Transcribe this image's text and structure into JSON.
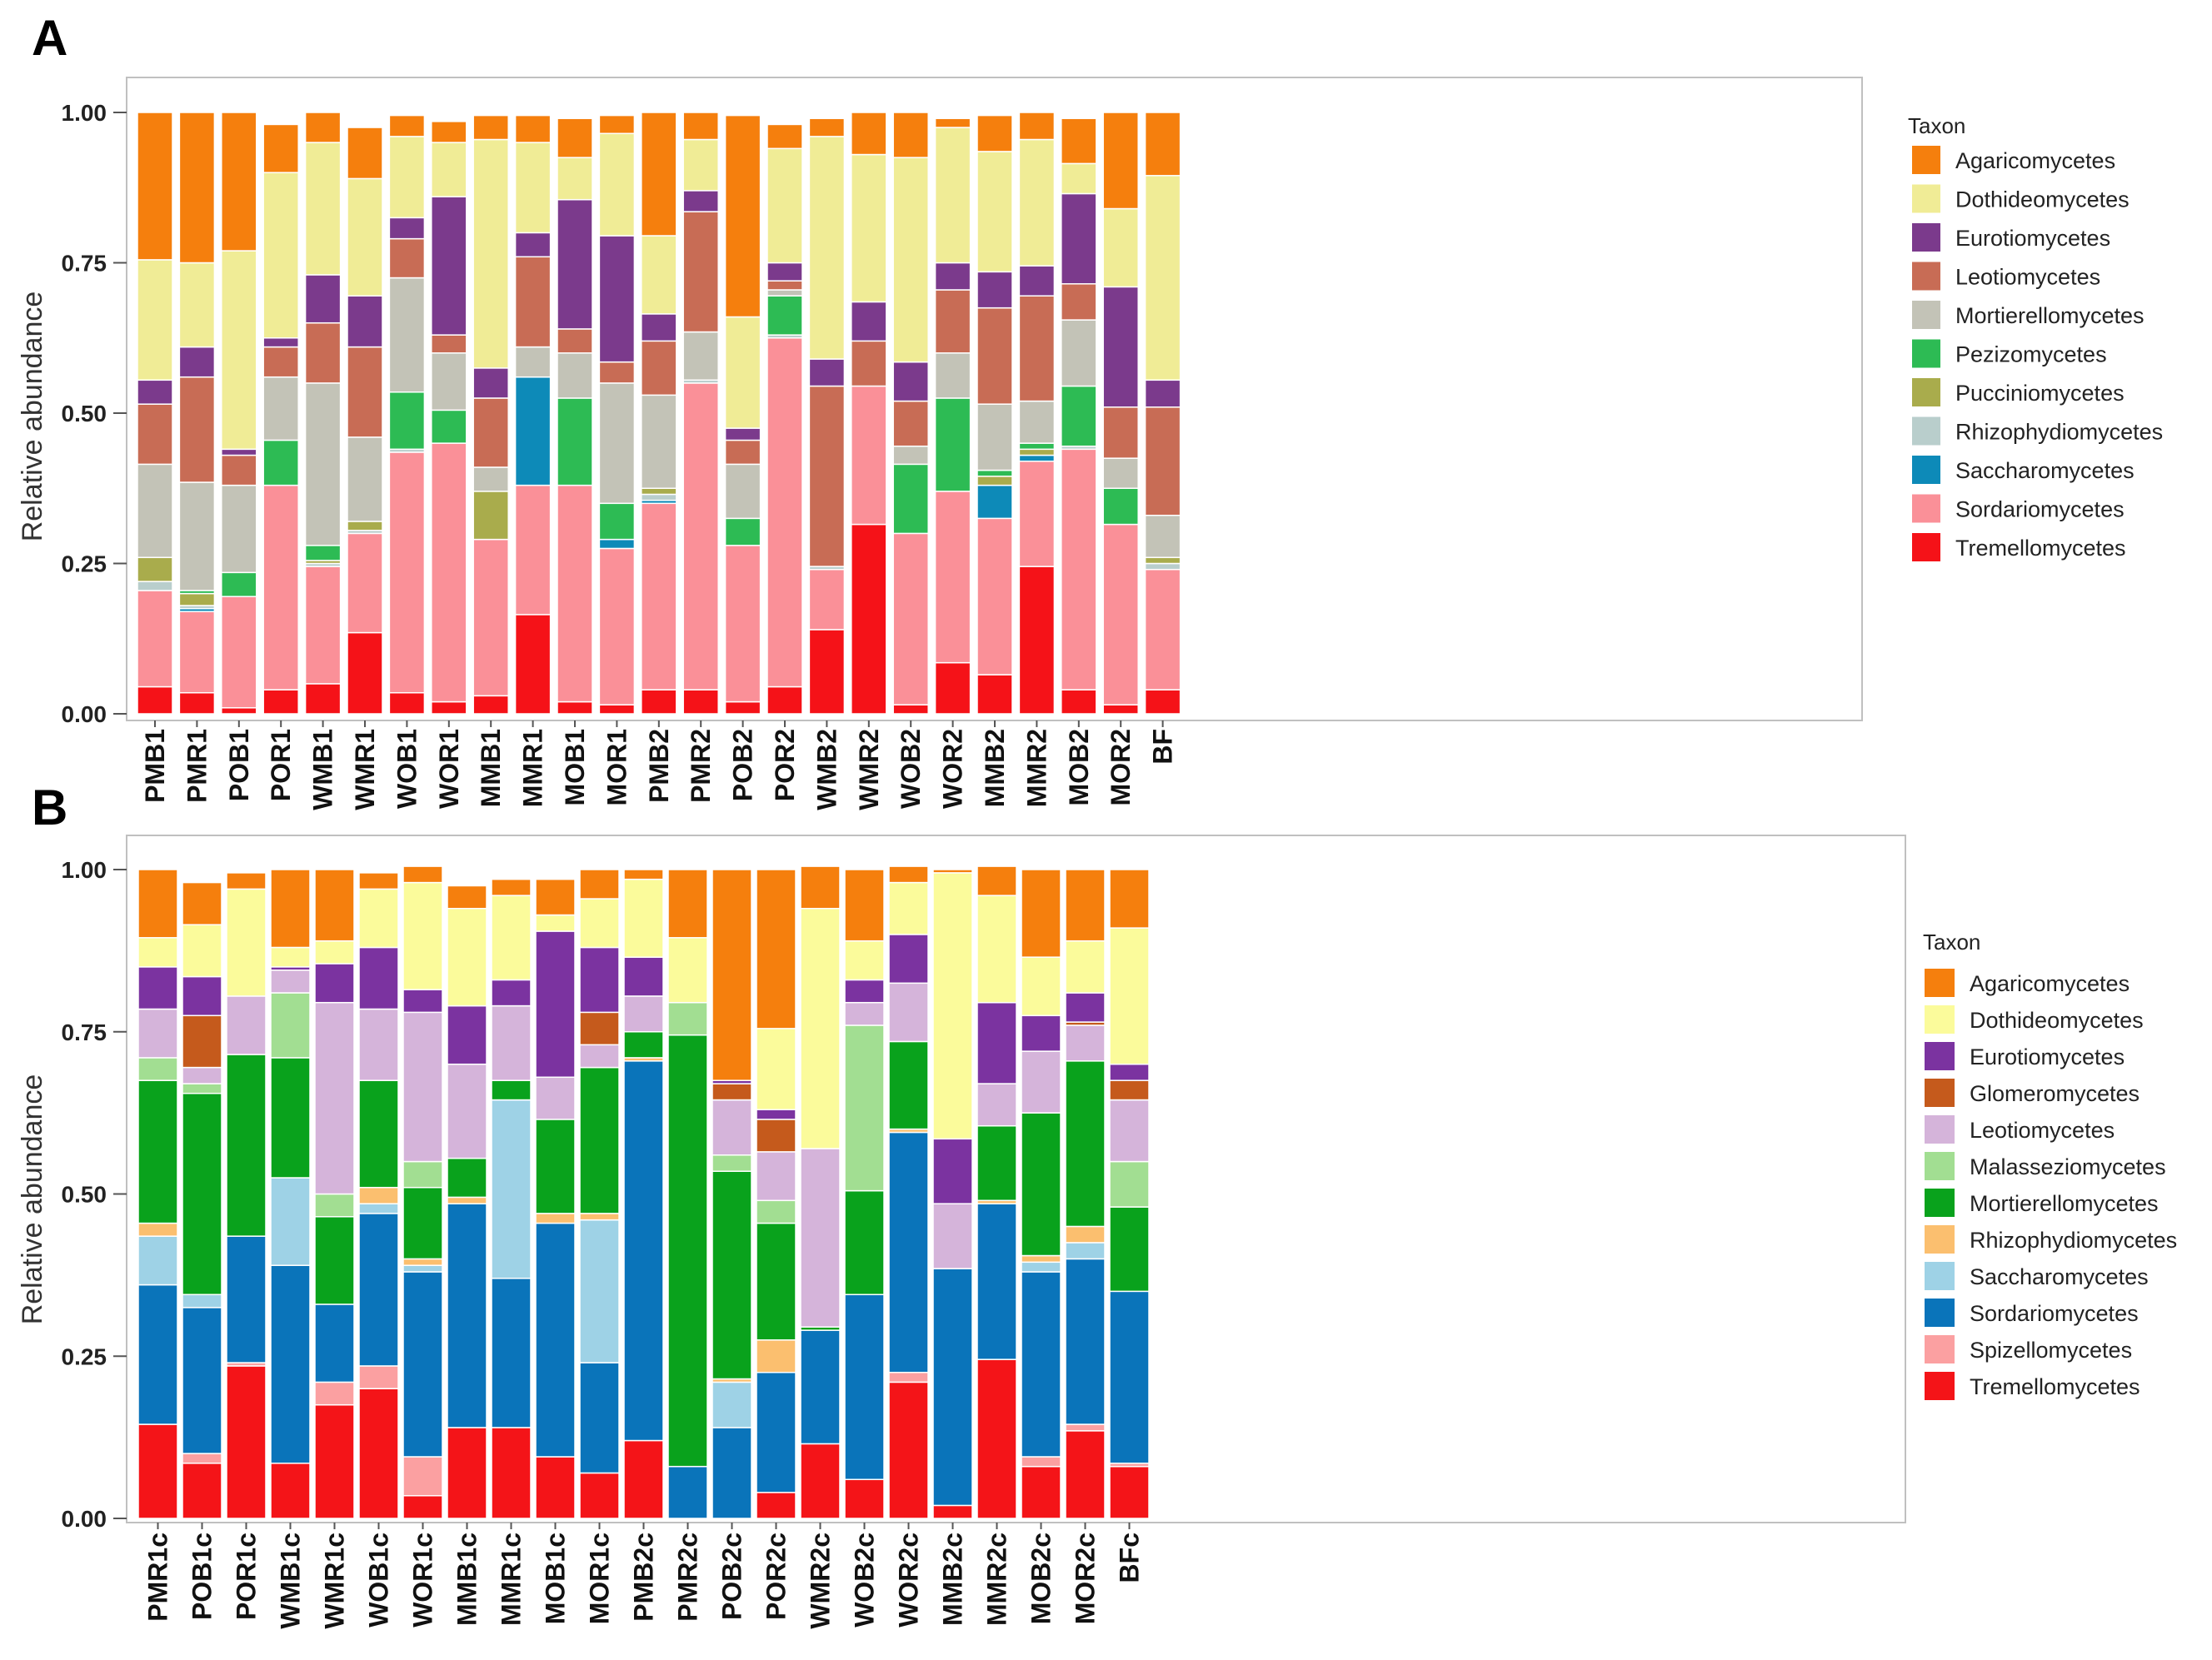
{
  "colors": {
    "Agaricomycetes": "#f57f0d",
    "Dothideomycetes": "#f0ec96",
    "Eurotiomycetes": "#7b3a8c",
    "Leotiomycetes_A": "#c86c55",
    "Mortierellomycetes_A": "#c3c3b7",
    "Pezizomycetes": "#2dbb54",
    "Pucciniomycetes": "#a9ac4c",
    "Rhizophydiomycetes_A": "#b9cecc",
    "Saccharomycetes_A": "#0d8ab8",
    "Sordariomycetes_A": "#fa9098",
    "Tremellomycetes": "#f51218",
    "Dothideomycetes_B": "#fbfb9b",
    "Eurotiomycetes_B": "#7b33a0",
    "Glomeromycetes": "#c55a1c",
    "Leotiomycetes_B": "#d5b4da",
    "Malasseziomycetes": "#a2de92",
    "Mortierellomycetes_B": "#09a21c",
    "Rhizophydiomycetes_B": "#fbbf6f",
    "Saccharomycetes_B": "#9ed2e6",
    "Sordariomycetes_B": "#0a74ba",
    "Spizellomycetes": "#fba0a1",
    "Tremellomycetes_B": "#f41418"
  },
  "chart_data": [
    {
      "type": "bar",
      "panel": "A",
      "stacked": true,
      "ylabel": "Relative abundance",
      "ylim": [
        0,
        1
      ],
      "yticks": [
        "0.00",
        "0.25",
        "0.50",
        "0.75",
        "1.00"
      ],
      "legend_title": "Taxon",
      "legend_position": "right",
      "legend": [
        "Agaricomycetes",
        "Dothideomycetes",
        "Eurotiomycetes",
        "Leotiomycetes",
        "Mortierellomycetes",
        "Pezizomycetes",
        "Pucciniomycetes",
        "Rhizophydiomycetes",
        "Saccharomycetes",
        "Sordariomycetes",
        "Tremellomycetes"
      ],
      "legend_color_keys": [
        "Agaricomycetes",
        "Dothideomycetes",
        "Eurotiomycetes",
        "Leotiomycetes_A",
        "Mortierellomycetes_A",
        "Pezizomycetes",
        "Pucciniomycetes",
        "Rhizophydiomycetes_A",
        "Saccharomycetes_A",
        "Sordariomycetes_A",
        "Tremellomycetes"
      ],
      "categories": [
        "PMB1",
        "PMR1",
        "POB1",
        "POR1",
        "WMB1",
        "WMR1",
        "WOB1",
        "WOR1",
        "MMB1",
        "MMR1",
        "MOB1",
        "MOR1",
        "PMB2",
        "PMR2",
        "POB2",
        "POR2",
        "WMB2",
        "WMR2",
        "WOB2",
        "WOR2",
        "MMB2",
        "MMR2",
        "MOB2",
        "MOR2",
        "BF"
      ],
      "stack_order_bottom_to_top": [
        "Tremellomycetes",
        "Sordariomycetes",
        "Saccharomycetes",
        "Rhizophydiomycetes",
        "Pucciniomycetes",
        "Pezizomycetes",
        "Mortierellomycetes",
        "Leotiomycetes",
        "Eurotiomycetes",
        "Dothideomycetes",
        "Agaricomycetes"
      ],
      "series": [
        {
          "name": "Tremellomycetes",
          "values": [
            0.045,
            0.035,
            0.01,
            0.04,
            0.05,
            0.135,
            0.035,
            0.02,
            0.03,
            0.165,
            0.02,
            0.015,
            0.04,
            0.04,
            0.02,
            0.045,
            0.14,
            0.315,
            0.015,
            0.085,
            0.065,
            0.245,
            0.04,
            0.015,
            0.04
          ]
        },
        {
          "name": "Sordariomycetes",
          "values": [
            0.16,
            0.135,
            0.185,
            0.34,
            0.195,
            0.165,
            0.4,
            0.43,
            0.26,
            0.215,
            0.36,
            0.26,
            0.31,
            0.51,
            0.26,
            0.58,
            0.1,
            0.23,
            0.285,
            0.285,
            0.26,
            0.175,
            0.4,
            0.3,
            0.2
          ]
        },
        {
          "name": "Saccharomycetes",
          "values": [
            0.0,
            0.005,
            0.0,
            0.0,
            0.0,
            0.0,
            0.0,
            0.0,
            0.0,
            0.18,
            0.0,
            0.015,
            0.005,
            0.0,
            0.0,
            0.0,
            0.0,
            0.0,
            0.0,
            0.0,
            0.055,
            0.01,
            0.0,
            0.0,
            0.0
          ]
        },
        {
          "name": "Rhizophydiomycetes",
          "values": [
            0.015,
            0.005,
            0.0,
            0.0,
            0.005,
            0.005,
            0.005,
            0.0,
            0.0,
            0.0,
            0.0,
            0.0,
            0.01,
            0.005,
            0.0,
            0.005,
            0.005,
            0.0,
            0.0,
            0.0,
            0.0,
            0.0,
            0.005,
            0.0,
            0.01
          ]
        },
        {
          "name": "Pucciniomycetes",
          "values": [
            0.04,
            0.02,
            0.0,
            0.0,
            0.005,
            0.015,
            0.0,
            0.0,
            0.08,
            0.0,
            0.0,
            0.0,
            0.01,
            0.0,
            0.0,
            0.0,
            0.0,
            0.0,
            0.0,
            0.0,
            0.015,
            0.01,
            0.0,
            0.0,
            0.01
          ]
        },
        {
          "name": "Pezizomycetes",
          "values": [
            0.0,
            0.005,
            0.04,
            0.075,
            0.025,
            0.0,
            0.095,
            0.055,
            0.0,
            0.0,
            0.145,
            0.06,
            0.0,
            0.0,
            0.045,
            0.065,
            0.0,
            0.0,
            0.115,
            0.155,
            0.01,
            0.01,
            0.1,
            0.06,
            0.0
          ]
        },
        {
          "name": "Mortierellomycetes",
          "values": [
            0.155,
            0.18,
            0.145,
            0.105,
            0.27,
            0.14,
            0.19,
            0.095,
            0.04,
            0.05,
            0.075,
            0.2,
            0.155,
            0.08,
            0.09,
            0.01,
            0.0,
            0.0,
            0.03,
            0.075,
            0.11,
            0.07,
            0.11,
            0.05,
            0.07
          ]
        },
        {
          "name": "Leotiomycetes",
          "values": [
            0.1,
            0.175,
            0.05,
            0.05,
            0.1,
            0.15,
            0.065,
            0.03,
            0.115,
            0.15,
            0.04,
            0.035,
            0.09,
            0.2,
            0.04,
            0.015,
            0.3,
            0.075,
            0.075,
            0.105,
            0.16,
            0.175,
            0.06,
            0.085,
            0.18
          ]
        },
        {
          "name": "Eurotiomycetes",
          "values": [
            0.04,
            0.05,
            0.01,
            0.015,
            0.08,
            0.085,
            0.035,
            0.23,
            0.05,
            0.04,
            0.215,
            0.21,
            0.045,
            0.035,
            0.02,
            0.03,
            0.045,
            0.065,
            0.065,
            0.045,
            0.06,
            0.05,
            0.15,
            0.2,
            0.045
          ]
        },
        {
          "name": "Dothideomycetes",
          "values": [
            0.2,
            0.14,
            0.33,
            0.275,
            0.22,
            0.195,
            0.135,
            0.09,
            0.38,
            0.15,
            0.07,
            0.17,
            0.13,
            0.085,
            0.185,
            0.19,
            0.37,
            0.245,
            0.34,
            0.225,
            0.2,
            0.21,
            0.05,
            0.13,
            0.34
          ]
        },
        {
          "name": "Agaricomycetes",
          "values": [
            0.245,
            0.25,
            0.23,
            0.08,
            0.05,
            0.085,
            0.035,
            0.035,
            0.04,
            0.045,
            0.065,
            0.03,
            0.205,
            0.045,
            0.335,
            0.04,
            0.03,
            0.07,
            0.075,
            0.015,
            0.06,
            0.045,
            0.075,
            0.16,
            0.105
          ]
        }
      ]
    },
    {
      "type": "bar",
      "panel": "B",
      "stacked": true,
      "ylabel": "Relative abundance",
      "ylim": [
        0,
        1
      ],
      "yticks": [
        "0.00",
        "0.25",
        "0.50",
        "0.75",
        "1.00"
      ],
      "legend_title": "Taxon",
      "legend_position": "right",
      "legend": [
        "Agaricomycetes",
        "Dothideomycetes",
        "Eurotiomycetes",
        "Glomeromycetes",
        "Leotiomycetes",
        "Malasseziomycetes",
        "Mortierellomycetes",
        "Rhizophydiomycetes",
        "Saccharomycetes",
        "Sordariomycetes",
        "Spizellomycetes",
        "Tremellomycetes"
      ],
      "legend_color_keys": [
        "Agaricomycetes",
        "Dothideomycetes_B",
        "Eurotiomycetes_B",
        "Glomeromycetes",
        "Leotiomycetes_B",
        "Malasseziomycetes",
        "Mortierellomycetes_B",
        "Rhizophydiomycetes_B",
        "Saccharomycetes_B",
        "Sordariomycetes_B",
        "Spizellomycetes",
        "Tremellomycetes_B"
      ],
      "categories": [
        "PMR1c",
        "POB1c",
        "POR1c",
        "WMB1c",
        "WMR1c",
        "WOB1c",
        "WOR1c",
        "MMB1c",
        "MMR1c",
        "MOB1c",
        "MOR1c",
        "PMB2c",
        "PMR2c",
        "POB2c",
        "POR2c",
        "WMR2c",
        "WOB2c",
        "WOR2c",
        "MMB2c",
        "MMR2c",
        "MOB2c",
        "MOR2c",
        "BFc"
      ],
      "stack_order_bottom_to_top": [
        "Tremellomycetes",
        "Spizellomycetes",
        "Sordariomycetes",
        "Saccharomycetes",
        "Rhizophydiomycetes",
        "Mortierellomycetes",
        "Malasseziomycetes",
        "Leotiomycetes",
        "Glomeromycetes",
        "Eurotiomycetes",
        "Dothideomycetes",
        "Agaricomycetes"
      ],
      "series": [
        {
          "name": "Tremellomycetes",
          "values": [
            0.145,
            0.085,
            0.235,
            0.085,
            0.175,
            0.2,
            0.035,
            0.14,
            0.14,
            0.095,
            0.07,
            0.12,
            0.0,
            0.0,
            0.04,
            0.115,
            0.06,
            0.21,
            0.02,
            0.245,
            0.08,
            0.135,
            0.08
          ]
        },
        {
          "name": "Spizellomycetes",
          "values": [
            0.0,
            0.015,
            0.005,
            0.0,
            0.035,
            0.035,
            0.06,
            0.0,
            0.0,
            0.0,
            0.0,
            0.0,
            0.0,
            0.0,
            0.0,
            0.0,
            0.0,
            0.015,
            0.0,
            0.0,
            0.015,
            0.01,
            0.005
          ]
        },
        {
          "name": "Sordariomycetes",
          "values": [
            0.215,
            0.225,
            0.195,
            0.305,
            0.12,
            0.235,
            0.285,
            0.345,
            0.23,
            0.36,
            0.17,
            0.585,
            0.08,
            0.14,
            0.185,
            0.175,
            0.285,
            0.37,
            0.365,
            0.24,
            0.285,
            0.255,
            0.265
          ]
        },
        {
          "name": "Saccharomycetes",
          "values": [
            0.075,
            0.02,
            0.0,
            0.135,
            0.0,
            0.015,
            0.01,
            0.0,
            0.275,
            0.0,
            0.22,
            0.0,
            0.0,
            0.07,
            0.0,
            0.0,
            0.0,
            0.0,
            0.0,
            0.0,
            0.015,
            0.025,
            0.0
          ]
        },
        {
          "name": "Rhizophydiomycetes",
          "values": [
            0.02,
            0.0,
            0.0,
            0.0,
            0.0,
            0.025,
            0.01,
            0.01,
            0.0,
            0.015,
            0.01,
            0.005,
            0.0,
            0.005,
            0.05,
            0.0,
            0.0,
            0.005,
            0.0,
            0.005,
            0.01,
            0.025,
            0.0
          ]
        },
        {
          "name": "Mortierellomycetes",
          "values": [
            0.22,
            0.31,
            0.28,
            0.185,
            0.135,
            0.165,
            0.11,
            0.06,
            0.03,
            0.145,
            0.225,
            0.04,
            0.665,
            0.32,
            0.18,
            0.005,
            0.16,
            0.135,
            0.0,
            0.115,
            0.22,
            0.255,
            0.13
          ]
        },
        {
          "name": "Malasseziomycetes",
          "values": [
            0.035,
            0.015,
            0.0,
            0.1,
            0.035,
            0.0,
            0.04,
            0.0,
            0.0,
            0.0,
            0.0,
            0.0,
            0.05,
            0.025,
            0.035,
            0.0,
            0.255,
            0.0,
            0.0,
            0.0,
            0.0,
            0.0,
            0.07
          ]
        },
        {
          "name": "Leotiomycetes",
          "values": [
            0.075,
            0.025,
            0.09,
            0.035,
            0.295,
            0.11,
            0.23,
            0.145,
            0.115,
            0.065,
            0.035,
            0.055,
            0.0,
            0.085,
            0.075,
            0.275,
            0.035,
            0.09,
            0.1,
            0.065,
            0.095,
            0.055,
            0.095
          ]
        },
        {
          "name": "Glomeromycetes",
          "values": [
            0.0,
            0.08,
            0.0,
            0.0,
            0.0,
            0.0,
            0.0,
            0.0,
            0.0,
            0.0,
            0.05,
            0.0,
            0.0,
            0.025,
            0.05,
            0.0,
            0.0,
            0.0,
            0.0,
            0.0,
            0.0,
            0.005,
            0.03
          ]
        },
        {
          "name": "Eurotiomycetes",
          "values": [
            0.065,
            0.06,
            0.0,
            0.005,
            0.06,
            0.095,
            0.035,
            0.09,
            0.04,
            0.225,
            0.1,
            0.06,
            0.0,
            0.005,
            0.015,
            0.0,
            0.035,
            0.075,
            0.1,
            0.125,
            0.055,
            0.045,
            0.025
          ]
        },
        {
          "name": "Dothideomycetes",
          "values": [
            0.045,
            0.08,
            0.165,
            0.03,
            0.035,
            0.09,
            0.165,
            0.15,
            0.13,
            0.025,
            0.075,
            0.12,
            0.1,
            0.0,
            0.125,
            0.37,
            0.06,
            0.08,
            0.41,
            0.165,
            0.09,
            0.08,
            0.21
          ]
        },
        {
          "name": "Agaricomycetes",
          "values": [
            0.105,
            0.065,
            0.025,
            0.12,
            0.11,
            0.025,
            0.025,
            0.035,
            0.025,
            0.055,
            0.045,
            0.015,
            0.105,
            0.325,
            0.245,
            0.065,
            0.11,
            0.025,
            0.005,
            0.045,
            0.135,
            0.11,
            0.09
          ]
        }
      ]
    }
  ]
}
